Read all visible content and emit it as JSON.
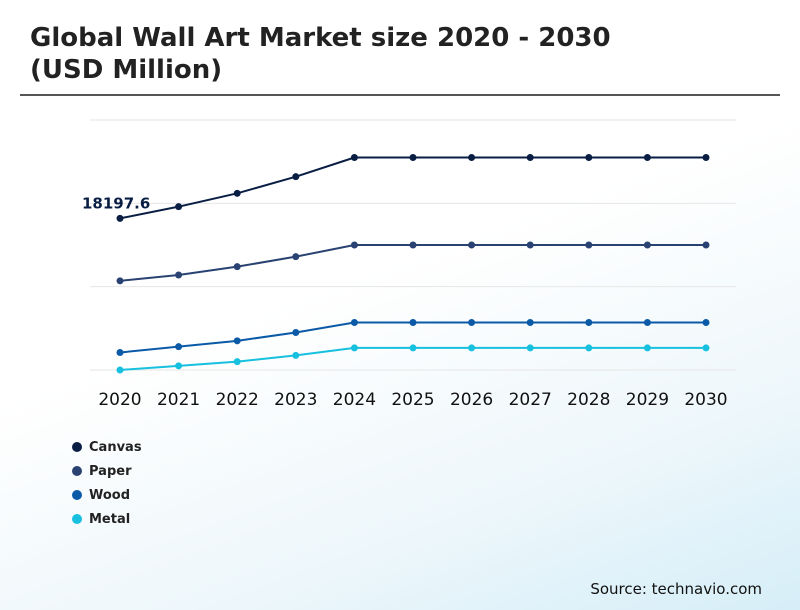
{
  "colors": {
    "Canvas": "#0a1e44",
    "Paper": "#2a4272",
    "Wood": "#0a5aa8",
    "Metal": "#17c0de",
    "grid": "#e6e6e6"
  },
  "chart_data": {
    "type": "line",
    "title": "Global Wall Art Market size 2020 - 2030\n(USD Million)",
    "source": "Source: technavio.com",
    "x": [
      "2020",
      "2021",
      "2022",
      "2023",
      "2024",
      "2025",
      "2026",
      "2027",
      "2028",
      "2029",
      "2030"
    ],
    "ylim": [
      0,
      30000
    ],
    "grid": true,
    "y_axis_labels_shown": false,
    "legend_position": "bottom-left",
    "annotation": {
      "series": "Canvas",
      "x": "2020",
      "text": "18197.6"
    },
    "series": [
      {
        "name": "Canvas",
        "values": [
          18197.6,
          19600,
          21200,
          23200,
          25500,
          25500,
          25500,
          25500,
          25500,
          25500,
          25500
        ]
      },
      {
        "name": "Paper",
        "values": [
          10700,
          11400,
          12400,
          13600,
          15000,
          15000,
          15000,
          15000,
          15000,
          15000,
          15000
        ]
      },
      {
        "name": "Wood",
        "values": [
          2100,
          2800,
          3500,
          4500,
          5700,
          5700,
          5700,
          5700,
          5700,
          5700,
          5700
        ]
      },
      {
        "name": "Metal",
        "values": [
          0,
          500,
          1000,
          1750,
          2650,
          2650,
          2650,
          2650,
          2650,
          2650,
          2650
        ]
      }
    ]
  }
}
